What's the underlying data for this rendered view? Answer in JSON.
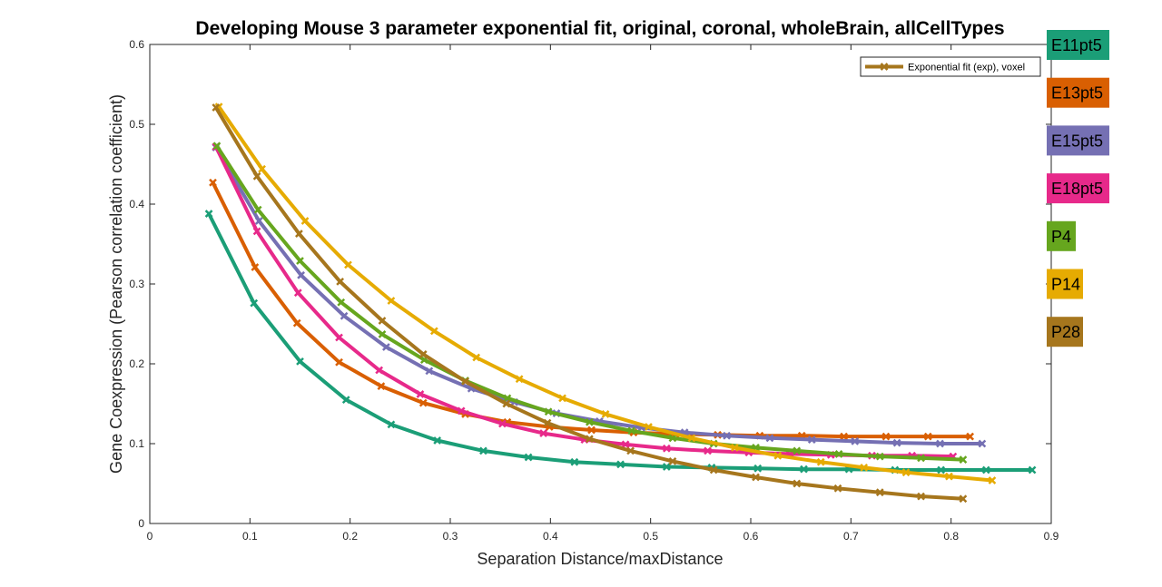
{
  "chart_data": {
    "type": "line",
    "title": "Developing Mouse 3 parameter exponential fit, original, coronal, wholeBrain, allCellTypes",
    "xlabel": "Separation Distance/maxDistance",
    "ylabel": "Gene Coexpression (Pearson correlation coefficient)",
    "xlim": [
      0,
      0.9
    ],
    "ylim": [
      0,
      0.6
    ],
    "xticks": [
      "0",
      "0.1",
      "0.2",
      "0.3",
      "0.4",
      "0.5",
      "0.6",
      "0.7",
      "0.8",
      "0.9"
    ],
    "yticks": [
      "0",
      "0.1",
      "0.2",
      "0.3",
      "0.4",
      "0.5",
      "0.6"
    ],
    "xtick_values": [
      0,
      0.1,
      0.2,
      0.3,
      0.4,
      0.5,
      0.6,
      0.7,
      0.8,
      0.9
    ],
    "ytick_values": [
      0,
      0.1,
      0.2,
      0.3,
      0.4,
      0.5,
      0.6
    ],
    "grid": false,
    "legend": {
      "entry": "Exponential fit (exp), voxel",
      "color": "#A6761D",
      "placement": "top-right"
    },
    "series": [
      {
        "name": "E11pt5",
        "color": "#1B9E77",
        "x": [
          0.059,
          0.104,
          0.15,
          0.196,
          0.241,
          0.287,
          0.333,
          0.378,
          0.424,
          0.47,
          0.516,
          0.561,
          0.607,
          0.653,
          0.698,
          0.744,
          0.79,
          0.835,
          0.881
        ],
        "y": [
          0.388,
          0.276,
          0.203,
          0.155,
          0.124,
          0.104,
          0.091,
          0.083,
          0.077,
          0.074,
          0.071,
          0.07,
          0.069,
          0.068,
          0.068,
          0.067,
          0.067,
          0.067,
          0.067
        ]
      },
      {
        "name": "E13pt5",
        "color": "#D95F02",
        "x": [
          0.063,
          0.105,
          0.147,
          0.189,
          0.231,
          0.273,
          0.315,
          0.357,
          0.399,
          0.441,
          0.483,
          0.525,
          0.567,
          0.609,
          0.651,
          0.693,
          0.735,
          0.777,
          0.819
        ],
        "y": [
          0.427,
          0.321,
          0.251,
          0.202,
          0.172,
          0.151,
          0.137,
          0.127,
          0.121,
          0.117,
          0.114,
          0.112,
          0.111,
          0.11,
          0.11,
          0.109,
          0.109,
          0.109,
          0.109
        ]
      },
      {
        "name": "E15pt5",
        "color": "#7570B3",
        "x": [
          0.066,
          0.109,
          0.151,
          0.194,
          0.236,
          0.279,
          0.321,
          0.364,
          0.406,
          0.449,
          0.491,
          0.534,
          0.576,
          0.619,
          0.661,
          0.704,
          0.746,
          0.789,
          0.831
        ],
        "y": [
          0.471,
          0.379,
          0.311,
          0.26,
          0.221,
          0.191,
          0.169,
          0.152,
          0.138,
          0.128,
          0.12,
          0.114,
          0.11,
          0.107,
          0.105,
          0.103,
          0.101,
          0.1,
          0.1
        ]
      },
      {
        "name": "E18pt5",
        "color": "#E7298A",
        "x": [
          0.066,
          0.107,
          0.148,
          0.189,
          0.229,
          0.27,
          0.311,
          0.352,
          0.393,
          0.434,
          0.475,
          0.516,
          0.557,
          0.598,
          0.639,
          0.68,
          0.721,
          0.761,
          0.802
        ],
        "y": [
          0.472,
          0.366,
          0.289,
          0.233,
          0.192,
          0.162,
          0.141,
          0.125,
          0.113,
          0.105,
          0.099,
          0.094,
          0.091,
          0.089,
          0.087,
          0.086,
          0.085,
          0.085,
          0.084
        ]
      },
      {
        "name": "P4",
        "color": "#66A61E",
        "x": [
          0.067,
          0.108,
          0.15,
          0.191,
          0.232,
          0.274,
          0.315,
          0.357,
          0.398,
          0.439,
          0.481,
          0.522,
          0.563,
          0.605,
          0.646,
          0.688,
          0.729,
          0.77,
          0.812
        ],
        "y": [
          0.473,
          0.393,
          0.329,
          0.277,
          0.237,
          0.205,
          0.179,
          0.157,
          0.14,
          0.127,
          0.116,
          0.107,
          0.1,
          0.095,
          0.091,
          0.087,
          0.084,
          0.082,
          0.08
        ]
      },
      {
        "name": "P14",
        "color": "#E6AB02",
        "x": [
          0.069,
          0.112,
          0.155,
          0.198,
          0.241,
          0.284,
          0.326,
          0.369,
          0.412,
          0.455,
          0.498,
          0.541,
          0.584,
          0.627,
          0.67,
          0.713,
          0.755,
          0.798,
          0.841
        ],
        "y": [
          0.522,
          0.444,
          0.379,
          0.324,
          0.279,
          0.241,
          0.208,
          0.181,
          0.157,
          0.137,
          0.121,
          0.107,
          0.095,
          0.085,
          0.077,
          0.07,
          0.064,
          0.059,
          0.054
        ]
      },
      {
        "name": "P28",
        "color": "#A6761D",
        "x": [
          0.066,
          0.107,
          0.149,
          0.19,
          0.232,
          0.273,
          0.315,
          0.356,
          0.397,
          0.439,
          0.48,
          0.522,
          0.563,
          0.605,
          0.646,
          0.687,
          0.729,
          0.77,
          0.812
        ],
        "y": [
          0.521,
          0.435,
          0.363,
          0.303,
          0.254,
          0.212,
          0.178,
          0.15,
          0.126,
          0.106,
          0.091,
          0.078,
          0.067,
          0.058,
          0.05,
          0.044,
          0.039,
          0.034,
          0.031
        ]
      }
    ]
  },
  "side_legend": [
    {
      "label": "E11pt5",
      "color": "#1B9E77"
    },
    {
      "label": "E13pt5",
      "color": "#D95F02"
    },
    {
      "label": "E15pt5",
      "color": "#7570B3"
    },
    {
      "label": "E18pt5",
      "color": "#E7298A"
    },
    {
      "label": "P4",
      "color": "#66A61E"
    },
    {
      "label": "P14",
      "color": "#E6AB02"
    },
    {
      "label": "P28",
      "color": "#A6761D"
    }
  ]
}
